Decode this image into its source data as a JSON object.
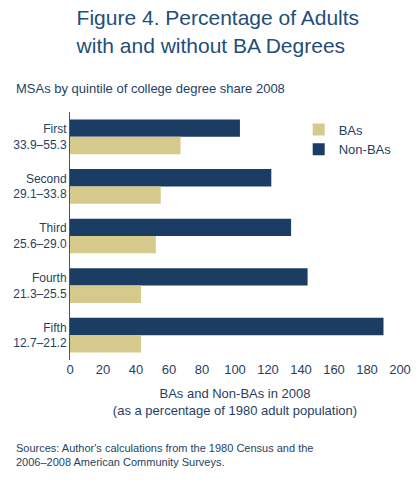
{
  "chart_data": {
    "type": "bar",
    "orientation": "horizontal",
    "title": "Figure 4. Percentage of Adults\nwith and without BA Degrees",
    "subtitle": "MSAs by quintile of college degree share 2008",
    "categories": [
      "First\n33.9–55.3",
      "Second\n29.1–33.8",
      "Third\n25.6–29.0",
      "Fourth\n21.3–25.5",
      "Fifth\n12.7–21.2"
    ],
    "series": [
      {
        "name": "Non-BAs",
        "color": "#1b3d63",
        "values": [
          103,
          122,
          134,
          144,
          190
        ]
      },
      {
        "name": "BAs",
        "color": "#d6c98c",
        "values": [
          67,
          55,
          52,
          43,
          43
        ]
      }
    ],
    "xlabel": "BAs and Non-BAs in 2008\n(as a percentage of 1980 adult population)",
    "xlim": [
      0,
      200
    ],
    "xticks": [
      0,
      20,
      40,
      60,
      80,
      100,
      120,
      140,
      160,
      180,
      200
    ],
    "grid": false,
    "legend": "top right",
    "annotations": [
      "Sources: Author's calculations from the 1980 Census and the\n2006–2008 American Community Surveys."
    ]
  }
}
